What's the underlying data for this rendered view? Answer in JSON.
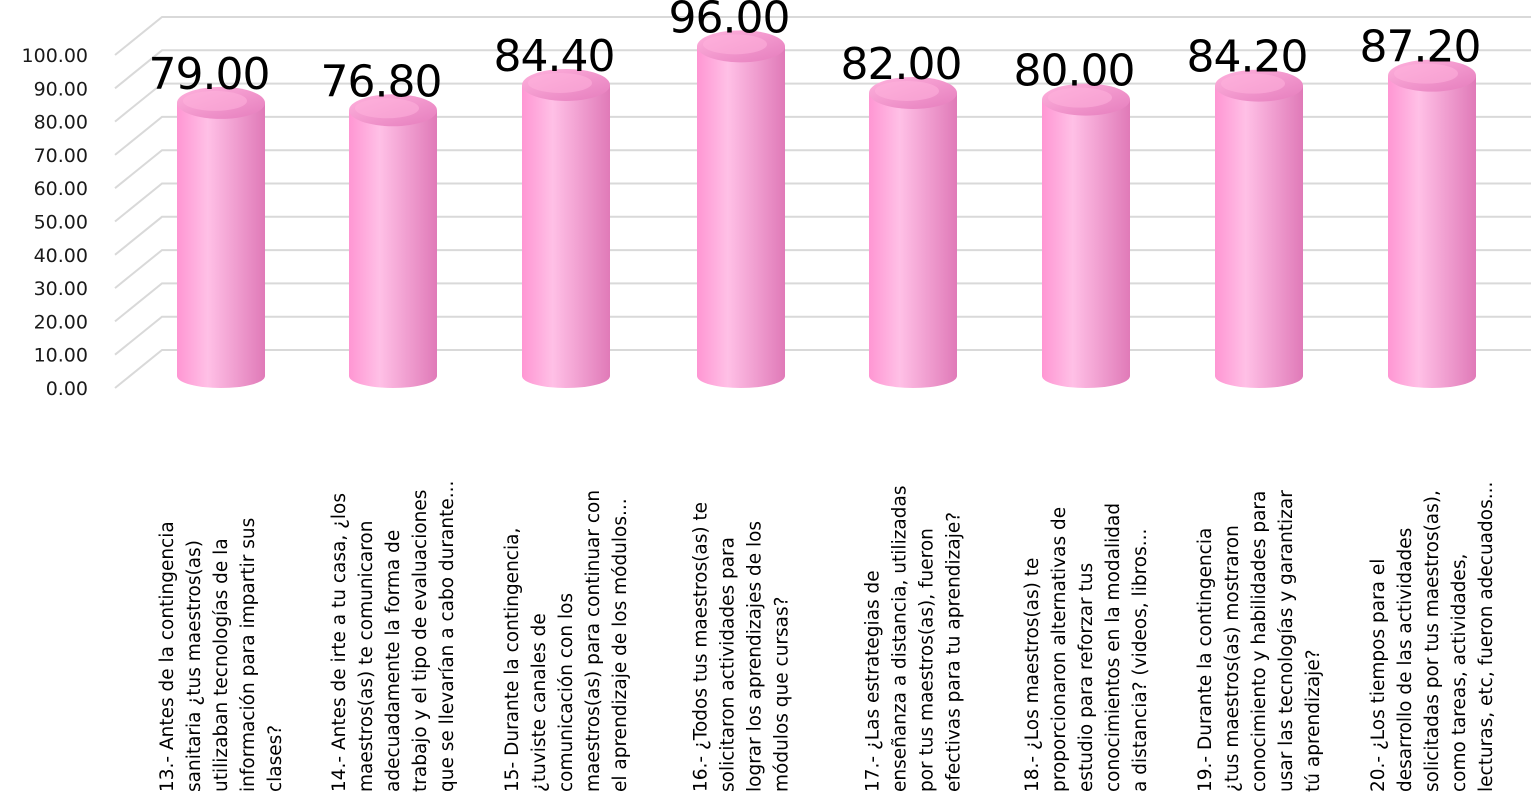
{
  "chart_data": {
    "type": "bar",
    "style": "3d-cylinder",
    "categories": [
      [
        "13.- Antes de la contingencia",
        "sanitaria ¿tus maestros(as)",
        "utilizaban tecnologías de la",
        "información para impartir sus",
        "clases?"
      ],
      [
        "14.- Antes de irte a tu casa, ¿los",
        "maestros(as) te comunicaron",
        "adecuadamente la forma de",
        "trabajo y el tipo de evaluaciones",
        "que se llevarían a cabo durante..."
      ],
      [
        "15- Durante la contingencia,",
        "¿tuviste canales de",
        "comunicación con los",
        "maestros(as) para continuar con",
        "el aprendizaje de los módulos..."
      ],
      [
        "16.- ¿Todos tus maestros(as) te",
        "solicitaron actividades para",
        "lograr los aprendizajes de los",
        "módulos que cursas?"
      ],
      [
        "17.- ¿Las estrategias de",
        "enseñanza a distancia, utilizadas",
        "por tus maestros(as), fueron",
        "efectivas para tu aprendizaje?"
      ],
      [
        "18.- ¿Los maestros(as) te",
        "proporcionaron alternativas de",
        "estudio para reforzar tus",
        "conocimientos en la modalidad",
        "a distancia? (videos, libros..."
      ],
      [
        "19.- Durante la contingencia",
        "¿tus maestros(as) mostraron",
        "conocimiento y habilidades para",
        "usar las tecnologías y garantizar",
        "tú aprendizaje?"
      ],
      [
        "20.- ¿Los tiempos para el",
        "desarrollo de las actividades",
        "solicitadas por tus maestros(as),",
        "como tareas, actividades,",
        "lecturas, etc, fueron adecuados..."
      ]
    ],
    "values": [
      79.0,
      76.8,
      84.4,
      96.0,
      82.0,
      80.0,
      84.2,
      87.2
    ],
    "value_labels": [
      "79.00",
      "76.80",
      "84.40",
      "96.00",
      "82.00",
      "80.00",
      "84.20",
      "87.20"
    ],
    "y_ticks": [
      "0.00",
      "10.00",
      "20.00",
      "30.00",
      "40.00",
      "50.00",
      "60.00",
      "70.00",
      "80.00",
      "90.00",
      "100.00"
    ],
    "ylim": [
      0,
      100
    ],
    "grid": true,
    "legend": "none",
    "colors": {
      "bar_base": "#ff96d3",
      "bar_light": "#ffc0e6",
      "bar_dark": "#e07ab8",
      "top_light": "#ffb2dd",
      "top_dark": "#e57dbd",
      "grid": "#d9d9d9",
      "text": "#000000"
    }
  }
}
